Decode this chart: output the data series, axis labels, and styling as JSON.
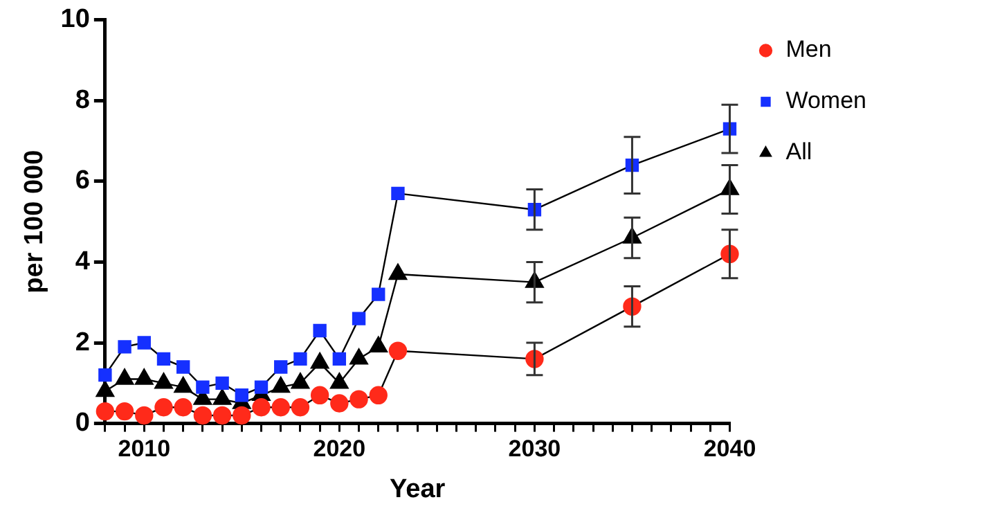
{
  "chart_data": {
    "type": "line",
    "xlabel": "Year",
    "ylabel": "per 100 000",
    "x": [
      2008,
      2009,
      2010,
      2011,
      2012,
      2013,
      2014,
      2015,
      2016,
      2017,
      2018,
      2019,
      2020,
      2021,
      2022,
      2023,
      2030,
      2035,
      2040
    ],
    "series": [
      {
        "name": "Men",
        "color": "#ff2a1a",
        "marker": "circle",
        "values": [
          0.3,
          0.3,
          0.2,
          0.4,
          0.4,
          0.2,
          0.2,
          0.2,
          0.4,
          0.4,
          0.4,
          0.7,
          0.5,
          0.6,
          0.7,
          1.8,
          1.6,
          2.9,
          4.2
        ],
        "errors": [
          null,
          null,
          null,
          null,
          null,
          null,
          null,
          null,
          null,
          null,
          null,
          null,
          null,
          null,
          null,
          null,
          0.4,
          0.5,
          0.6
        ]
      },
      {
        "name": "Women",
        "color": "#1530ff",
        "marker": "square",
        "values": [
          1.2,
          1.9,
          2.0,
          1.6,
          1.4,
          0.9,
          1.0,
          0.7,
          0.9,
          1.4,
          1.6,
          2.3,
          1.6,
          2.6,
          3.2,
          5.7,
          5.3,
          6.4,
          7.3
        ],
        "errors": [
          null,
          null,
          null,
          null,
          null,
          null,
          null,
          null,
          null,
          null,
          null,
          null,
          null,
          null,
          null,
          null,
          0.5,
          0.7,
          0.6
        ]
      },
      {
        "name": "All",
        "color": "#000000",
        "marker": "triangle",
        "values": [
          0.8,
          1.1,
          1.1,
          1.0,
          0.9,
          0.6,
          0.6,
          0.5,
          0.7,
          0.9,
          1.0,
          1.5,
          1.0,
          1.6,
          1.9,
          3.7,
          3.5,
          4.6,
          5.8
        ],
        "errors": [
          null,
          null,
          null,
          null,
          null,
          null,
          null,
          null,
          null,
          null,
          null,
          null,
          null,
          null,
          null,
          null,
          0.5,
          0.5,
          0.6
        ]
      }
    ],
    "xlim": [
      2008,
      2040
    ],
    "xticks": [
      {
        "value": 2008,
        "label": null
      },
      {
        "value": 2009,
        "label": null
      },
      2010,
      {
        "value": 2011,
        "label": null
      },
      {
        "value": 2012,
        "label": null
      },
      {
        "value": 2013,
        "label": null
      },
      {
        "value": 2014,
        "label": null
      },
      {
        "value": 2015,
        "label": null
      },
      {
        "value": 2016,
        "label": null
      },
      {
        "value": 2017,
        "label": null
      },
      {
        "value": 2018,
        "label": null
      },
      {
        "value": 2019,
        "label": null
      },
      2020,
      {
        "value": 2021,
        "label": null
      },
      {
        "value": 2022,
        "label": null
      },
      {
        "value": 2023,
        "label": null
      },
      {
        "value": 2024,
        "label": null
      },
      {
        "value": 2025,
        "label": null
      },
      {
        "value": 2026,
        "label": null
      },
      {
        "value": 2027,
        "label": null
      },
      {
        "value": 2028,
        "label": null
      },
      {
        "value": 2029,
        "label": null
      },
      2030,
      {
        "value": 2031,
        "label": null
      },
      {
        "value": 2032,
        "label": null
      },
      {
        "value": 2033,
        "label": null
      },
      {
        "value": 2034,
        "label": null
      },
      {
        "value": 2035,
        "label": null
      },
      {
        "value": 2036,
        "label": null
      },
      {
        "value": 2037,
        "label": null
      },
      {
        "value": 2038,
        "label": null
      },
      {
        "value": 2039,
        "label": null
      },
      2040
    ],
    "ylim": [
      0,
      10
    ],
    "yticks": [
      0,
      2,
      4,
      6,
      8,
      10
    ],
    "grid": false,
    "legend": "top right",
    "line_style": "solid"
  }
}
